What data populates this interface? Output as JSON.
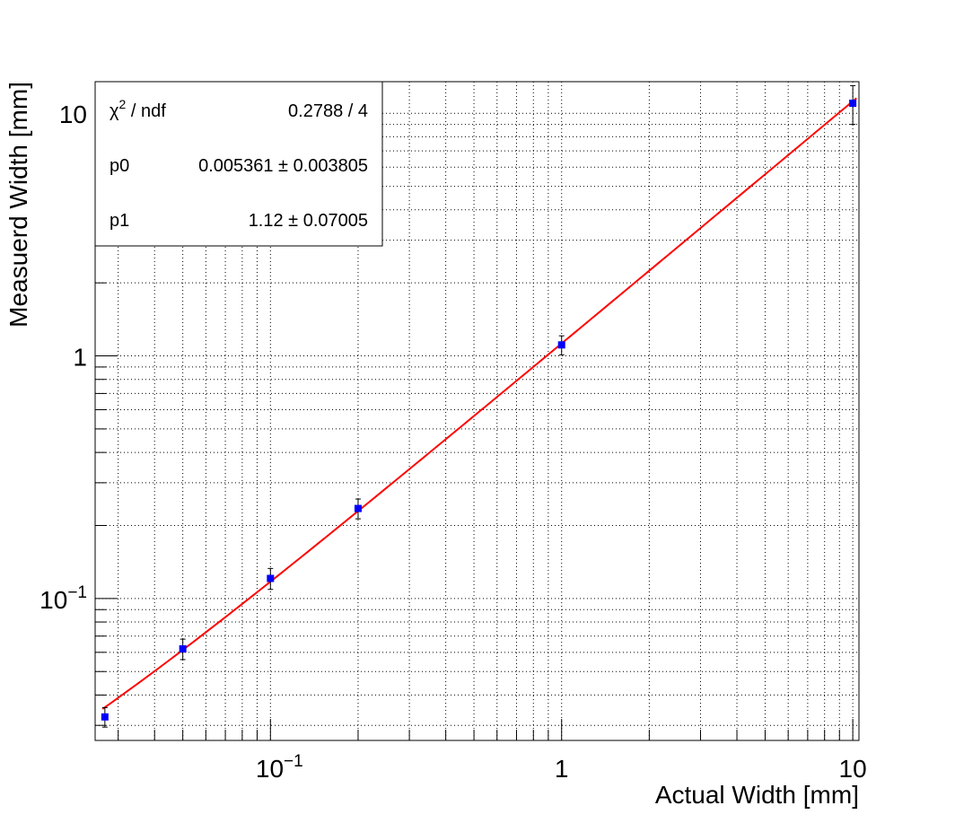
{
  "chart_data": {
    "type": "scatter",
    "xlabel": "Actual Width [mm]",
    "ylabel": "Measuerd Width [mm]",
    "xscale": "log",
    "yscale": "log",
    "xlim": [
      0.025,
      10.5
    ],
    "ylim": [
      0.026,
      13.5
    ],
    "grid": true,
    "x_ticks": [
      {
        "value": 0.1,
        "base": "10",
        "exp": "−1"
      },
      {
        "value": 1,
        "base": "1",
        "exp": ""
      },
      {
        "value": 10,
        "base": "10",
        "exp": ""
      }
    ],
    "y_ticks": [
      {
        "value": 0.1,
        "base": "10",
        "exp": "−1"
      },
      {
        "value": 1,
        "base": "1",
        "exp": ""
      },
      {
        "value": 10,
        "base": "10",
        "exp": ""
      }
    ],
    "series": [
      {
        "type": "points",
        "color": "#0000ff",
        "x": [
          0.027,
          0.05,
          0.1,
          0.2,
          1,
          10
        ],
        "y": [
          0.0325,
          0.062,
          0.121,
          0.235,
          1.11,
          11.0
        ],
        "err_low": [
          0.003,
          0.006,
          0.012,
          0.022,
          0.1,
          2.0
        ],
        "err_high": [
          0.003,
          0.006,
          0.012,
          0.022,
          0.1,
          2.0
        ]
      },
      {
        "type": "fit",
        "color": "#ff0000",
        "model": "p0 + p1*x",
        "p0": 0.005361,
        "p1": 1.12
      }
    ],
    "stats_box": {
      "position": "top-left",
      "rows": [
        {
          "name_main": "χ",
          "name_sup": "2",
          "name_rest": " / ndf",
          "value": "0.2788 / 4"
        },
        {
          "name_main": "p0",
          "name_sup": "",
          "name_rest": "",
          "value": "0.005361 ± 0.003805"
        },
        {
          "name_main": "p1",
          "name_sup": "",
          "name_rest": "",
          "value": "1.12 ± 0.07005"
        }
      ]
    }
  }
}
